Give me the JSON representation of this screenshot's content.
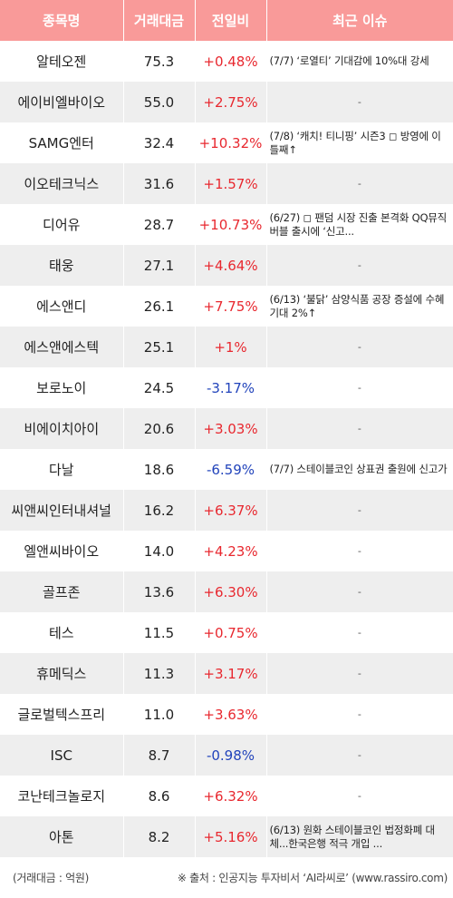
{
  "headers": {
    "name": "종목명",
    "volume": "거래대금",
    "change": "전일비",
    "news": "최근 이슈"
  },
  "rows": [
    {
      "name": "알테오젠",
      "volume": "75.3",
      "change": "+0.48%",
      "direction": "up",
      "news": "(7/7) ‘로열티’ 기대감에 10%대 강세"
    },
    {
      "name": "에이비엘바이오",
      "volume": "55.0",
      "change": "+2.75%",
      "direction": "up",
      "news": "-"
    },
    {
      "name": "SAMG엔터",
      "volume": "32.4",
      "change": "+10.32%",
      "direction": "up",
      "news": "(7/8) ‘캐치! 티니핑’ 시즌3 ◻ 방영에 이틀째↑"
    },
    {
      "name": "이오테크닉스",
      "volume": "31.6",
      "change": "+1.57%",
      "direction": "up",
      "news": "-"
    },
    {
      "name": "디어유",
      "volume": "28.7",
      "change": "+10.73%",
      "direction": "up",
      "news": "(6/27) ◻ 팬덤 시장 진출 본격화 QQ뮤직 버블 출시에 ‘신고..."
    },
    {
      "name": "태웅",
      "volume": "27.1",
      "change": "+4.64%",
      "direction": "up",
      "news": "-"
    },
    {
      "name": "에스앤디",
      "volume": "26.1",
      "change": "+7.75%",
      "direction": "up",
      "news": "(6/13) ‘불닭’ 삼양식품 공장 증설에 수혜 기대 2%↑"
    },
    {
      "name": "에스앤에스텍",
      "volume": "25.1",
      "change": "+1%",
      "direction": "up",
      "news": "-"
    },
    {
      "name": "보로노이",
      "volume": "24.5",
      "change": "-3.17%",
      "direction": "down",
      "news": "-"
    },
    {
      "name": "비에이치아이",
      "volume": "20.6",
      "change": "+3.03%",
      "direction": "up",
      "news": "-"
    },
    {
      "name": "다날",
      "volume": "18.6",
      "change": "-6.59%",
      "direction": "down",
      "news": "(7/7) 스테이블코인 상표권 출원에 신고가"
    },
    {
      "name": "씨앤씨인터내셔널",
      "volume": "16.2",
      "change": "+6.37%",
      "direction": "up",
      "news": "-"
    },
    {
      "name": "엘앤씨바이오",
      "volume": "14.0",
      "change": "+4.23%",
      "direction": "up",
      "news": "-"
    },
    {
      "name": "골프존",
      "volume": "13.6",
      "change": "+6.30%",
      "direction": "up",
      "news": "-"
    },
    {
      "name": "테스",
      "volume": "11.5",
      "change": "+0.75%",
      "direction": "up",
      "news": "-"
    },
    {
      "name": "휴메딕스",
      "volume": "11.3",
      "change": "+3.17%",
      "direction": "up",
      "news": "-"
    },
    {
      "name": "글로벌텍스프리",
      "volume": "11.0",
      "change": "+3.63%",
      "direction": "up",
      "news": "-"
    },
    {
      "name": "ISC",
      "volume": "8.7",
      "change": "-0.98%",
      "direction": "down",
      "news": "-"
    },
    {
      "name": "코난테크놀로지",
      "volume": "8.6",
      "change": "+6.32%",
      "direction": "up",
      "news": "-"
    },
    {
      "name": "아톤",
      "volume": "8.2",
      "change": "+5.16%",
      "direction": "up",
      "news": "(6/13) 원화 스테이블코인 법정화폐 대체...한국은행 적극 개입 ..."
    }
  ],
  "footer": {
    "unit_note": "(거래대금 : 억원)",
    "source_note": "※ 출처 : 인공지능 투자비서 ‘AI라씨로’ (www.rassiro.com)"
  },
  "colors": {
    "header_bg": "#f99a99",
    "up": "#e8282f",
    "down": "#2244bb",
    "stripe": "#eeeeee"
  }
}
